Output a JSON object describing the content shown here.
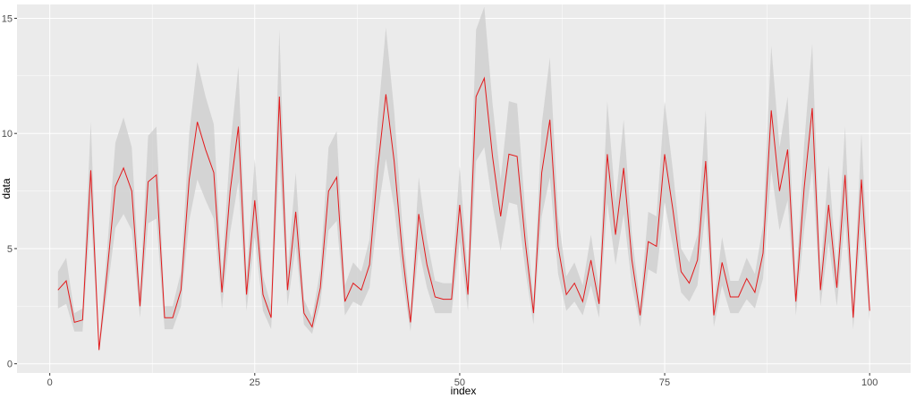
{
  "chart_data": {
    "type": "line",
    "title": "",
    "xlabel": "index",
    "ylabel": "data",
    "xlim": [
      -4,
      105
    ],
    "ylim": [
      -0.4,
      15.6
    ],
    "x_ticks": [
      0,
      25,
      50,
      75,
      100
    ],
    "x_tick_labels": [
      "0",
      "25",
      "50",
      "75",
      "100"
    ],
    "y_ticks": [
      0,
      5,
      10,
      15
    ],
    "y_tick_labels": [
      "0",
      "5",
      "10",
      "15"
    ],
    "grid": true,
    "legend": "none",
    "colors": {
      "panel": "#ebebeb",
      "grid": "#ffffff",
      "line": "#e31a1c",
      "ribbon": "#cccccc"
    },
    "series": [
      {
        "x": [
          1,
          2,
          3,
          4,
          5,
          6,
          7,
          8,
          9,
          10,
          11,
          12,
          13,
          14,
          15,
          16,
          17,
          18,
          19,
          20,
          21,
          22,
          23,
          24,
          25,
          26,
          27,
          28,
          29,
          30,
          31,
          32,
          33,
          34,
          35,
          36,
          37,
          38,
          39,
          40,
          41,
          42,
          43,
          44,
          45,
          46,
          47,
          48,
          49,
          50,
          51,
          52,
          53,
          54,
          55,
          56,
          57,
          58,
          59,
          60,
          61,
          62,
          63,
          64,
          65,
          66,
          67,
          68,
          69,
          70,
          71,
          72,
          73,
          74,
          75,
          76,
          77,
          78,
          79,
          80,
          81,
          82,
          83,
          84,
          85,
          86,
          87,
          88,
          89,
          90,
          91,
          92,
          93,
          94,
          95,
          96,
          97,
          98,
          99,
          100
        ],
        "values": [
          3.2,
          3.6,
          1.8,
          1.9,
          8.4,
          0.6,
          4.0,
          7.7,
          8.5,
          7.5,
          2.5,
          7.9,
          8.2,
          2.0,
          2.0,
          3.2,
          8.0,
          10.5,
          9.3,
          8.3,
          3.1,
          7.5,
          10.3,
          3.0,
          7.1,
          3.0,
          2.0,
          11.6,
          3.2,
          6.6,
          2.2,
          1.6,
          3.3,
          7.5,
          8.1,
          2.7,
          3.5,
          3.2,
          4.3,
          8.5,
          11.7,
          8.8,
          4.8,
          1.8,
          6.5,
          4.3,
          2.9,
          2.8,
          2.8,
          6.9,
          3.0,
          11.6,
          12.4,
          9.0,
          6.4,
          9.1,
          9.0,
          5.3,
          2.2,
          8.3,
          10.6,
          5.1,
          3.0,
          3.5,
          2.7,
          4.5,
          2.6,
          9.1,
          5.6,
          8.5,
          4.5,
          2.1,
          5.3,
          5.1,
          9.1,
          6.7,
          4.0,
          3.5,
          4.5,
          8.8,
          2.1,
          4.4,
          2.9,
          2.9,
          3.7,
          3.1,
          4.8,
          11.0,
          7.5,
          9.3,
          2.7,
          7.6,
          11.1,
          3.2,
          6.9,
          3.3,
          8.2,
          2.0,
          8.0,
          2.3
        ],
        "lower": [
          2.4,
          2.6,
          1.4,
          1.4,
          6.6,
          0.5,
          3.1,
          5.9,
          6.5,
          5.8,
          2.0,
          6.1,
          6.3,
          1.5,
          1.5,
          2.5,
          6.2,
          8.0,
          7.1,
          6.3,
          2.4,
          5.7,
          7.9,
          2.3,
          5.5,
          2.3,
          1.5,
          8.9,
          2.5,
          5.1,
          1.7,
          1.3,
          2.6,
          5.8,
          6.2,
          2.1,
          2.7,
          2.5,
          3.3,
          6.5,
          8.9,
          6.8,
          3.7,
          1.4,
          5.0,
          3.3,
          2.2,
          2.2,
          2.2,
          5.3,
          2.3,
          8.8,
          9.4,
          6.9,
          4.9,
          7.0,
          6.9,
          4.1,
          1.7,
          6.4,
          8.1,
          3.9,
          2.3,
          2.7,
          2.1,
          3.4,
          2.0,
          7.0,
          4.3,
          6.5,
          3.4,
          1.6,
          4.1,
          3.9,
          7.0,
          5.1,
          3.1,
          2.7,
          3.4,
          6.7,
          1.6,
          3.4,
          2.2,
          2.2,
          2.8,
          2.4,
          3.7,
          8.4,
          5.8,
          7.1,
          2.1,
          5.8,
          8.5,
          2.5,
          5.3,
          2.5,
          6.3,
          1.5,
          6.1,
          1.8
        ],
        "upper": [
          4.0,
          4.6,
          2.2,
          2.4,
          10.5,
          0.8,
          5.0,
          9.6,
          10.7,
          9.4,
          3.1,
          9.9,
          10.3,
          2.5,
          2.5,
          4.0,
          10.0,
          13.1,
          11.6,
          10.4,
          3.9,
          9.4,
          12.9,
          3.8,
          8.9,
          3.8,
          2.5,
          14.5,
          4.0,
          8.3,
          2.8,
          2.0,
          4.1,
          9.4,
          10.1,
          3.4,
          4.4,
          4.0,
          5.4,
          10.6,
          14.6,
          11.0,
          6.0,
          2.3,
          8.1,
          5.4,
          3.6,
          3.5,
          3.5,
          8.6,
          3.8,
          14.5,
          15.5,
          11.3,
          8.0,
          11.4,
          11.3,
          6.6,
          2.8,
          10.4,
          13.3,
          6.4,
          3.8,
          4.4,
          3.4,
          5.6,
          3.3,
          11.4,
          7.0,
          10.6,
          5.6,
          2.6,
          6.6,
          6.4,
          11.4,
          8.4,
          5.0,
          4.4,
          5.6,
          11.0,
          2.6,
          5.5,
          3.6,
          3.6,
          4.6,
          3.9,
          6.0,
          13.8,
          9.4,
          11.6,
          3.4,
          9.5,
          13.9,
          4.0,
          8.6,
          4.1,
          10.3,
          2.5,
          10.0,
          2.9
        ]
      }
    ]
  }
}
